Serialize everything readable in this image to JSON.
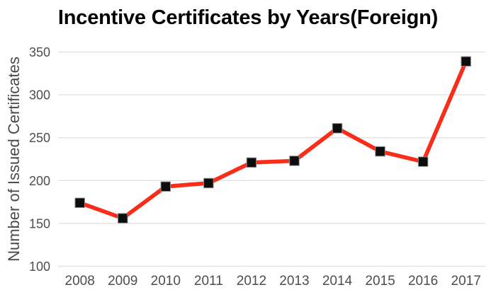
{
  "chart_data": {
    "type": "line",
    "title": "Incentive Certificates by Years(Foreign)",
    "xlabel": "",
    "ylabel": "Number of Issued Certificates",
    "categories": [
      "2008",
      "2009",
      "2010",
      "2011",
      "2012",
      "2013",
      "2014",
      "2015",
      "2016",
      "2017"
    ],
    "values": [
      174,
      156,
      193,
      197,
      221,
      223,
      261,
      234,
      222,
      339
    ],
    "ylim": [
      100,
      350
    ],
    "y_ticks": [
      100,
      150,
      200,
      250,
      300,
      350
    ],
    "grid": true,
    "legend": "none",
    "marker_shape": "square",
    "colors": {
      "line": "#fa2d1b",
      "marker": "#0d0d0d",
      "marker_border": "#8f8f8f",
      "gridline": "#e3e3e3",
      "tick_text": "#4d4d4d",
      "axis_label_text": "#4a4a4a",
      "title_text": "#000000",
      "background": "#ffffff"
    }
  }
}
